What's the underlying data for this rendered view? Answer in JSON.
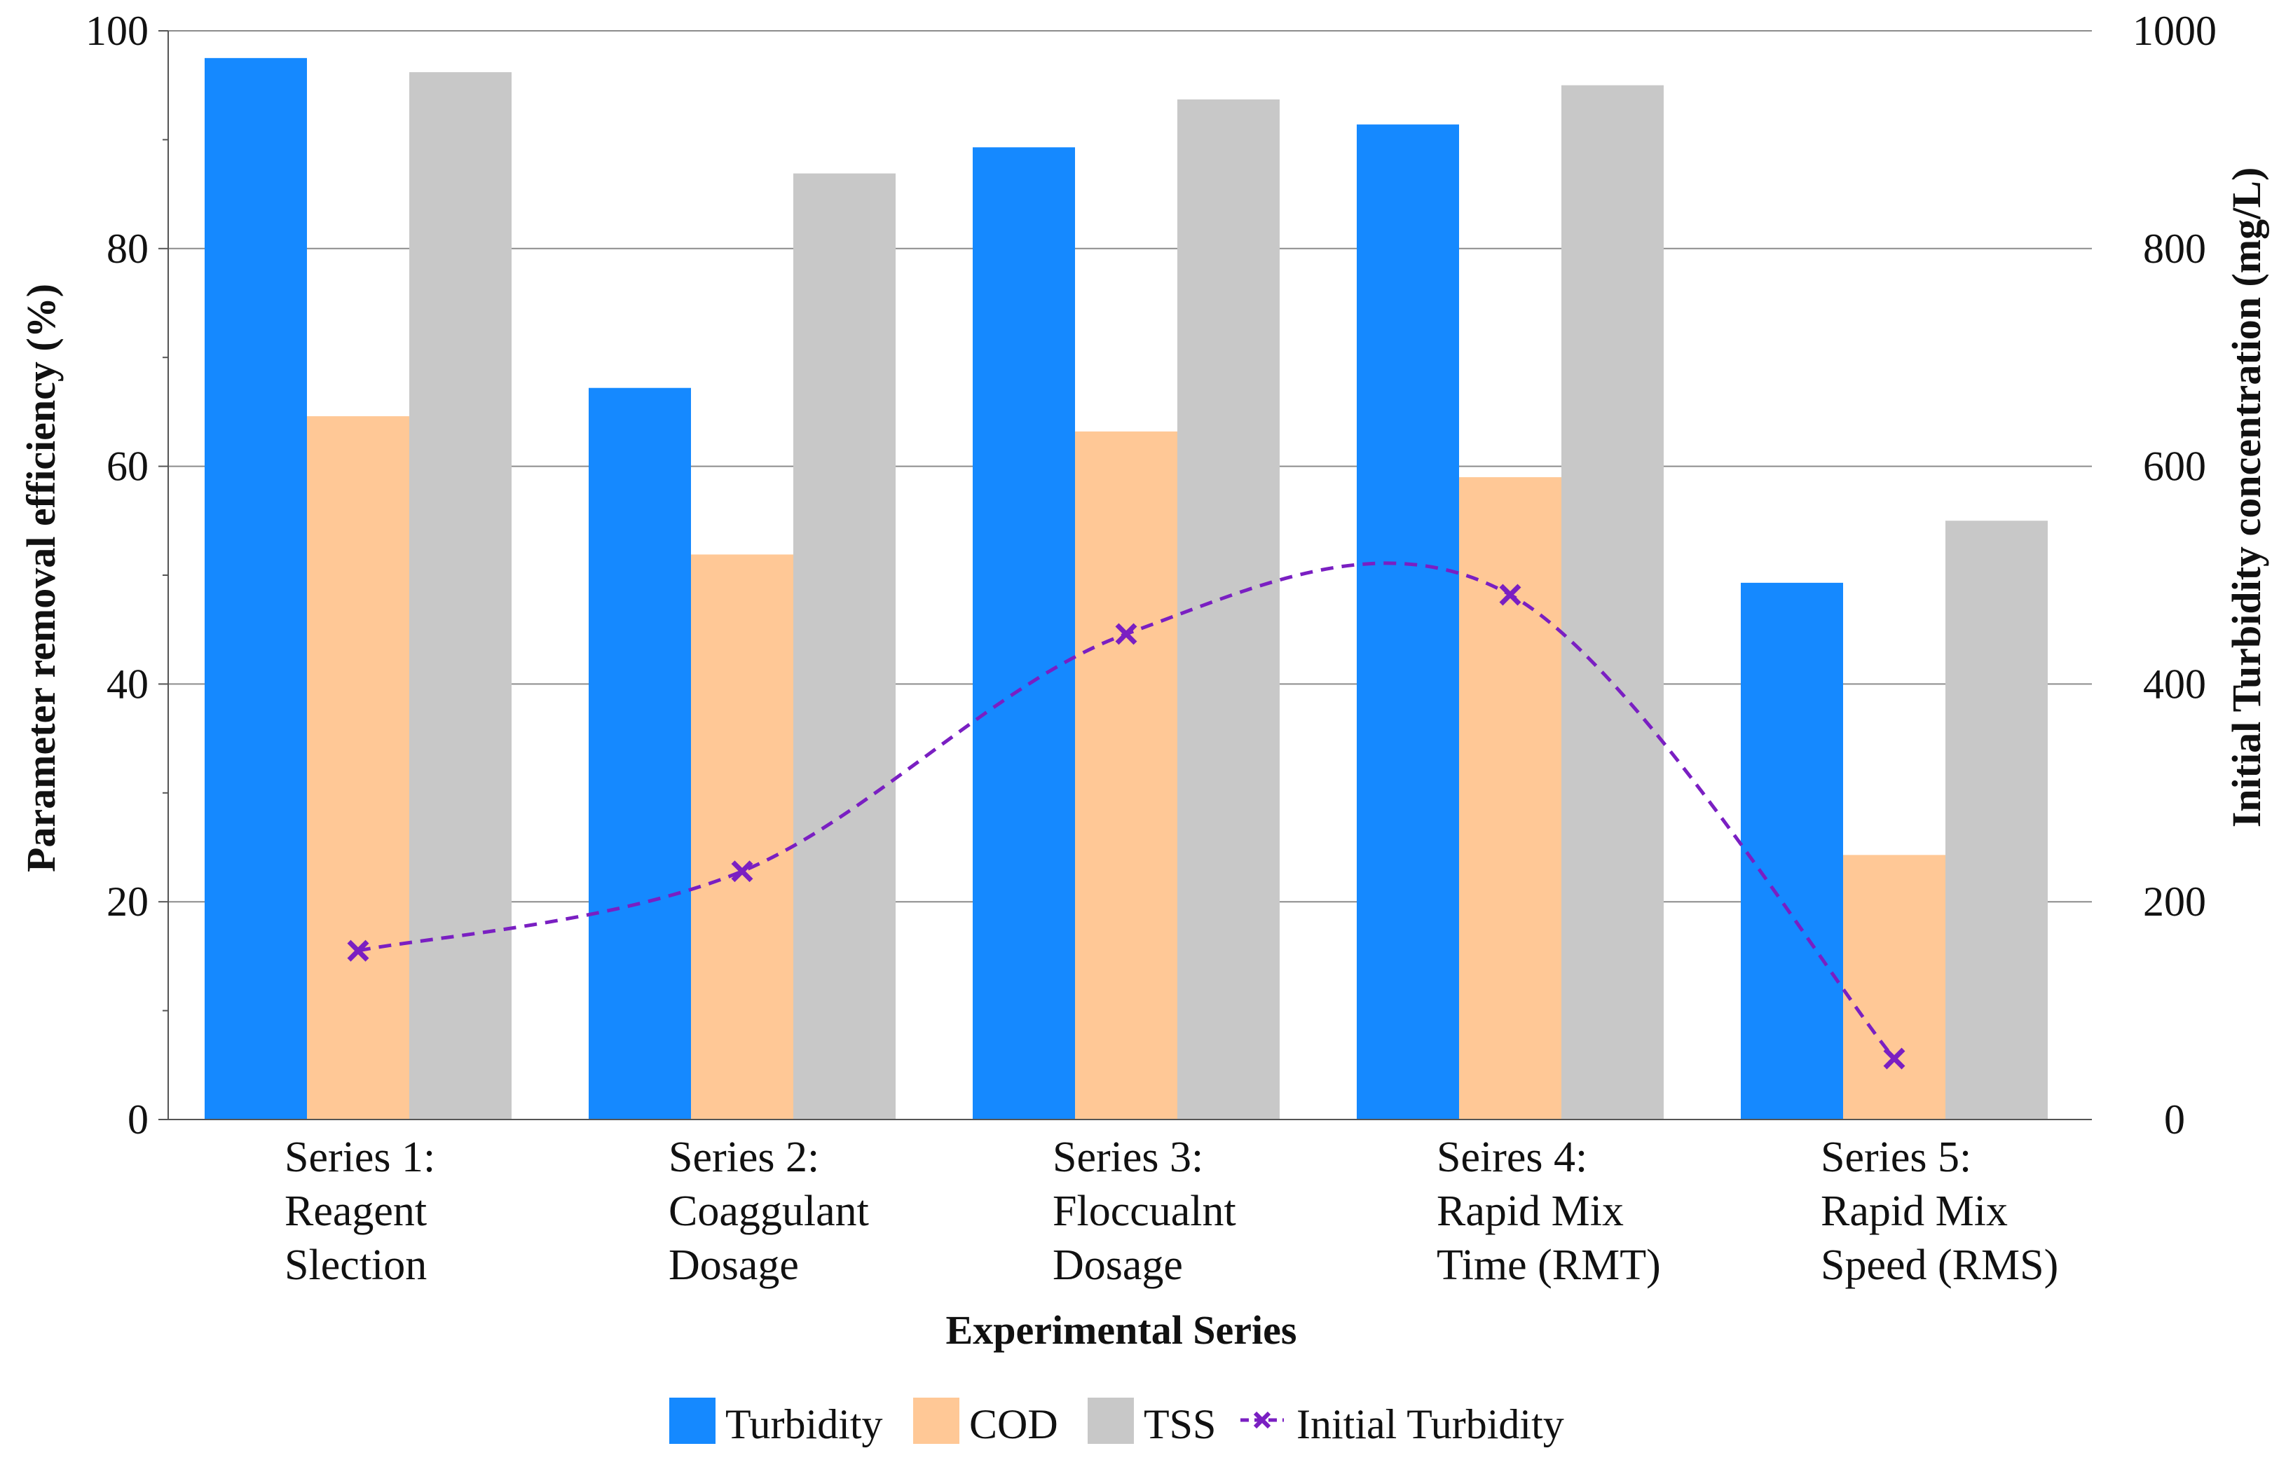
{
  "chart_data": {
    "type": "bar",
    "xlabel": "Experimental Series",
    "ylabel": "Parameter removal efficiency (%)",
    "y2label": "Initial Turbidity concentration (mg/L)",
    "ylim": [
      0,
      100
    ],
    "y2lim": [
      0,
      1000
    ],
    "yticks": [
      0,
      20,
      40,
      60,
      80,
      100
    ],
    "y2ticks": [
      0,
      200,
      400,
      600,
      800,
      1000
    ],
    "grid": true,
    "legend_position": "bottom",
    "categories": [
      [
        "Series 1:",
        "Reagent",
        "Slection"
      ],
      [
        "Series 2:",
        "Coaggulant",
        "Dosage"
      ],
      [
        "Series 3:",
        "Floccualnt",
        "Dosage"
      ],
      [
        "Seires 4:",
        "Rapid Mix",
        "Time (RMT)"
      ],
      [
        "Series 5:",
        "Rapid Mix",
        "Speed (RMS)"
      ]
    ],
    "series": [
      {
        "name": "Turbidity",
        "type": "bar",
        "axis": "left",
        "color": "#1589FF",
        "values": [
          97.5,
          67.2,
          89.3,
          91.4,
          49.3
        ]
      },
      {
        "name": "COD",
        "type": "bar",
        "axis": "left",
        "color": "#FFC896",
        "values": [
          64.6,
          51.9,
          63.2,
          59.0,
          24.3
        ]
      },
      {
        "name": "TSS",
        "type": "bar",
        "axis": "left",
        "color": "#C8C8C8",
        "values": [
          96.2,
          86.9,
          93.7,
          95.0,
          55.0
        ]
      },
      {
        "name": "Initial Turbidity",
        "type": "line",
        "axis": "right",
        "color": "#7A1FC2",
        "values": [
          155,
          228,
          446,
          482,
          56
        ]
      }
    ]
  }
}
